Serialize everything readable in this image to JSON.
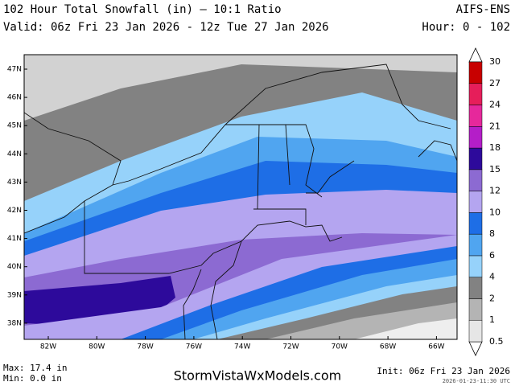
{
  "header": {
    "title": "102 Hour Total Snowfall (in) — 10:1 Ratio",
    "valid": "Valid: 06z Fri 23 Jan 2026 - 12z Tue 27 Jan 2026",
    "model": "AIFS-ENS",
    "hours": "Hour: 0 - 102"
  },
  "map": {
    "lat_labels": [
      "47N",
      "46N",
      "45N",
      "44N",
      "43N",
      "42N",
      "41N",
      "40N",
      "39N",
      "38N"
    ],
    "lon_labels": [
      "82W",
      "80W",
      "78W",
      "76W",
      "74W",
      "72W",
      "70W",
      "68W",
      "66W"
    ]
  },
  "colorbar": {
    "levels": [
      0.5,
      1,
      2,
      4,
      6,
      8,
      10,
      12,
      15,
      18,
      21,
      24,
      27,
      30
    ],
    "colors": [
      "#e6e6e6",
      "#b4b4b4",
      "#828282",
      "#96d2fa",
      "#50a5f0",
      "#1e6ee6",
      "#b4a5f0",
      "#8c6ad2",
      "#2d0a9b",
      "#b41ec8",
      "#e6289b",
      "#e61e5a",
      "#c80000"
    ]
  },
  "footer": {
    "max": "Max: 17.4 in",
    "min": "Min: 0.0 in",
    "site": "StormVistaWxModels.com",
    "init": "Init: 06z Fri 23 Jan 2026",
    "stamp": "2026-01-23-11:30 UTC"
  }
}
